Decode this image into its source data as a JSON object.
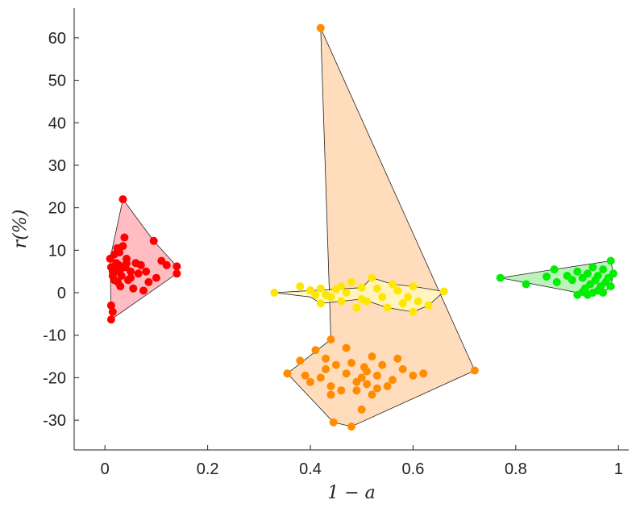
{
  "chart_data": {
    "type": "scatter",
    "title": "",
    "xlabel": "1 − a",
    "ylabel": "r(%)",
    "xlim": [
      -0.06,
      1.02
    ],
    "ylim": [
      -37,
      67
    ],
    "xticks": [
      0,
      0.2,
      0.4,
      0.6,
      0.8,
      1
    ],
    "xtick_labels": [
      "0",
      "0.2",
      "0.4",
      "0.6",
      "0.8",
      "1"
    ],
    "yticks": [
      60,
      50,
      40,
      30,
      20,
      10,
      0,
      -10,
      -20,
      -30
    ],
    "ytick_labels": [
      "60",
      "50",
      "40",
      "30",
      "20",
      "10",
      "0",
      "-10",
      "-20",
      "-30"
    ],
    "grid": false,
    "series": [
      {
        "name": "red",
        "color": "#ff0000",
        "fill": "#ffb0b8",
        "points": [
          [
            0.035,
            22
          ],
          [
            0.095,
            12.2
          ],
          [
            0.14,
            6.2
          ],
          [
            0.14,
            4.5
          ],
          [
            0.012,
            -6.3
          ],
          [
            0.012,
            -3
          ],
          [
            0.015,
            -4.5
          ],
          [
            0.01,
            8
          ],
          [
            0.012,
            6
          ],
          [
            0.015,
            4
          ],
          [
            0.018,
            3
          ],
          [
            0.02,
            5
          ],
          [
            0.022,
            7
          ],
          [
            0.025,
            2.5
          ],
          [
            0.028,
            9.5
          ],
          [
            0.03,
            5.5
          ],
          [
            0.032,
            4
          ],
          [
            0.035,
            11
          ],
          [
            0.038,
            13
          ],
          [
            0.04,
            6
          ],
          [
            0.042,
            8
          ],
          [
            0.045,
            3
          ],
          [
            0.05,
            5
          ],
          [
            0.055,
            1
          ],
          [
            0.06,
            7
          ],
          [
            0.065,
            4.5
          ],
          [
            0.07,
            6.5
          ],
          [
            0.075,
            0.5
          ],
          [
            0.08,
            5
          ],
          [
            0.085,
            2.5
          ],
          [
            0.1,
            3.5
          ],
          [
            0.11,
            7.5
          ],
          [
            0.12,
            6.5
          ],
          [
            0.018,
            9
          ],
          [
            0.024,
            10.5
          ],
          [
            0.03,
            1.5
          ],
          [
            0.042,
            7
          ],
          [
            0.05,
            3.5
          ],
          [
            0.015,
            5
          ],
          [
            0.027,
            6.5
          ]
        ],
        "hull": [
          [
            0.035,
            22
          ],
          [
            0.095,
            12.2
          ],
          [
            0.14,
            6.2
          ],
          [
            0.14,
            4.5
          ],
          [
            0.012,
            -6.3
          ],
          [
            0.01,
            8
          ]
        ]
      },
      {
        "name": "orange",
        "color": "#ff8c00",
        "fill": "#ffd7b0",
        "points": [
          [
            0.42,
            62.3
          ],
          [
            0.72,
            -18.3
          ],
          [
            0.48,
            -31.5
          ],
          [
            0.445,
            -30.5
          ],
          [
            0.355,
            -19
          ],
          [
            0.44,
            -11
          ],
          [
            0.41,
            -13.5
          ],
          [
            0.43,
            -15.5
          ],
          [
            0.38,
            -16
          ],
          [
            0.39,
            -19.5
          ],
          [
            0.4,
            -21
          ],
          [
            0.42,
            -20
          ],
          [
            0.43,
            -18
          ],
          [
            0.44,
            -22
          ],
          [
            0.45,
            -17
          ],
          [
            0.46,
            -23
          ],
          [
            0.47,
            -19
          ],
          [
            0.48,
            -16.5
          ],
          [
            0.49,
            -21
          ],
          [
            0.5,
            -20
          ],
          [
            0.51,
            -18.5
          ],
          [
            0.52,
            -24
          ],
          [
            0.53,
            -19.5
          ],
          [
            0.54,
            -17
          ],
          [
            0.55,
            -22
          ],
          [
            0.56,
            -20.5
          ],
          [
            0.58,
            -18
          ],
          [
            0.6,
            -19.5
          ],
          [
            0.62,
            -19
          ],
          [
            0.5,
            -27.5
          ],
          [
            0.44,
            -24
          ],
          [
            0.47,
            -13
          ],
          [
            0.52,
            -15
          ],
          [
            0.57,
            -15.5
          ],
          [
            0.49,
            -23
          ],
          [
            0.51,
            -21.5
          ],
          [
            0.53,
            -22.5
          ],
          [
            0.505,
            -17.5
          ]
        ],
        "hull": [
          [
            0.42,
            62.3
          ],
          [
            0.72,
            -18.3
          ],
          [
            0.48,
            -31.5
          ],
          [
            0.445,
            -30.5
          ],
          [
            0.355,
            -19
          ],
          [
            0.44,
            -11
          ]
        ]
      },
      {
        "name": "yellow",
        "color": "#ffe600",
        "fill": "#fff8c0",
        "points": [
          [
            0.33,
            0
          ],
          [
            0.4,
            0.5
          ],
          [
            0.42,
            -2.5
          ],
          [
            0.46,
            -2
          ],
          [
            0.5,
            -1.5
          ],
          [
            0.55,
            -3.5
          ],
          [
            0.6,
            -4.5
          ],
          [
            0.63,
            -3
          ],
          [
            0.58,
            -2.5
          ],
          [
            0.66,
            0.3
          ],
          [
            0.6,
            1.5
          ],
          [
            0.56,
            2
          ],
          [
            0.52,
            3.5
          ],
          [
            0.5,
            1.2
          ],
          [
            0.45,
            0.8
          ],
          [
            0.4,
            0.6
          ],
          [
            0.38,
            1.5
          ],
          [
            0.42,
            1
          ],
          [
            0.44,
            -1
          ],
          [
            0.47,
            0
          ],
          [
            0.49,
            -3.5
          ],
          [
            0.51,
            -2
          ],
          [
            0.53,
            1
          ],
          [
            0.54,
            -1
          ],
          [
            0.57,
            0.5
          ],
          [
            0.59,
            -1
          ],
          [
            0.61,
            -2
          ],
          [
            0.48,
            2.5
          ],
          [
            0.46,
            1.5
          ],
          [
            0.43,
            -0.5
          ],
          [
            0.41,
            -0.5
          ]
        ],
        "hull": [
          [
            0.33,
            0
          ],
          [
            0.4,
            0.5
          ],
          [
            0.45,
            0.8
          ],
          [
            0.5,
            1.2
          ],
          [
            0.52,
            3.5
          ],
          [
            0.56,
            2
          ],
          [
            0.6,
            1.5
          ],
          [
            0.66,
            0.3
          ],
          [
            0.63,
            -3
          ],
          [
            0.6,
            -4.5
          ],
          [
            0.55,
            -3.5
          ],
          [
            0.5,
            -1.5
          ],
          [
            0.46,
            -2
          ],
          [
            0.42,
            -2.5
          ],
          [
            0.4,
            -1
          ],
          [
            0.33,
            0
          ]
        ]
      },
      {
        "name": "green",
        "color": "#00ee00",
        "fill": "#b0f0b0",
        "points": [
          [
            0.77,
            3.5
          ],
          [
            0.82,
            2
          ],
          [
            0.86,
            3.8
          ],
          [
            0.875,
            5.5
          ],
          [
            0.88,
            2.5
          ],
          [
            0.9,
            4
          ],
          [
            0.91,
            3
          ],
          [
            0.92,
            5
          ],
          [
            0.93,
            3.5
          ],
          [
            0.935,
            1
          ],
          [
            0.94,
            4.5
          ],
          [
            0.945,
            2
          ],
          [
            0.95,
            6
          ],
          [
            0.955,
            3
          ],
          [
            0.96,
            4
          ],
          [
            0.965,
            1.5
          ],
          [
            0.97,
            5.5
          ],
          [
            0.975,
            2.5
          ],
          [
            0.98,
            3.5
          ],
          [
            0.985,
            7.5
          ],
          [
            0.99,
            4.5
          ],
          [
            0.985,
            1.5
          ],
          [
            0.97,
            0
          ],
          [
            0.96,
            0.5
          ],
          [
            0.95,
            0
          ],
          [
            0.94,
            -0.5
          ],
          [
            0.93,
            0.2
          ],
          [
            0.92,
            -0.5
          ]
        ],
        "hull": [
          [
            0.77,
            3.5
          ],
          [
            0.875,
            5.5
          ],
          [
            0.985,
            7.5
          ],
          [
            0.99,
            4.5
          ],
          [
            0.985,
            1.5
          ],
          [
            0.97,
            0
          ],
          [
            0.94,
            -0.5
          ],
          [
            0.9,
            0.5
          ],
          [
            0.77,
            3.5
          ]
        ]
      }
    ]
  }
}
